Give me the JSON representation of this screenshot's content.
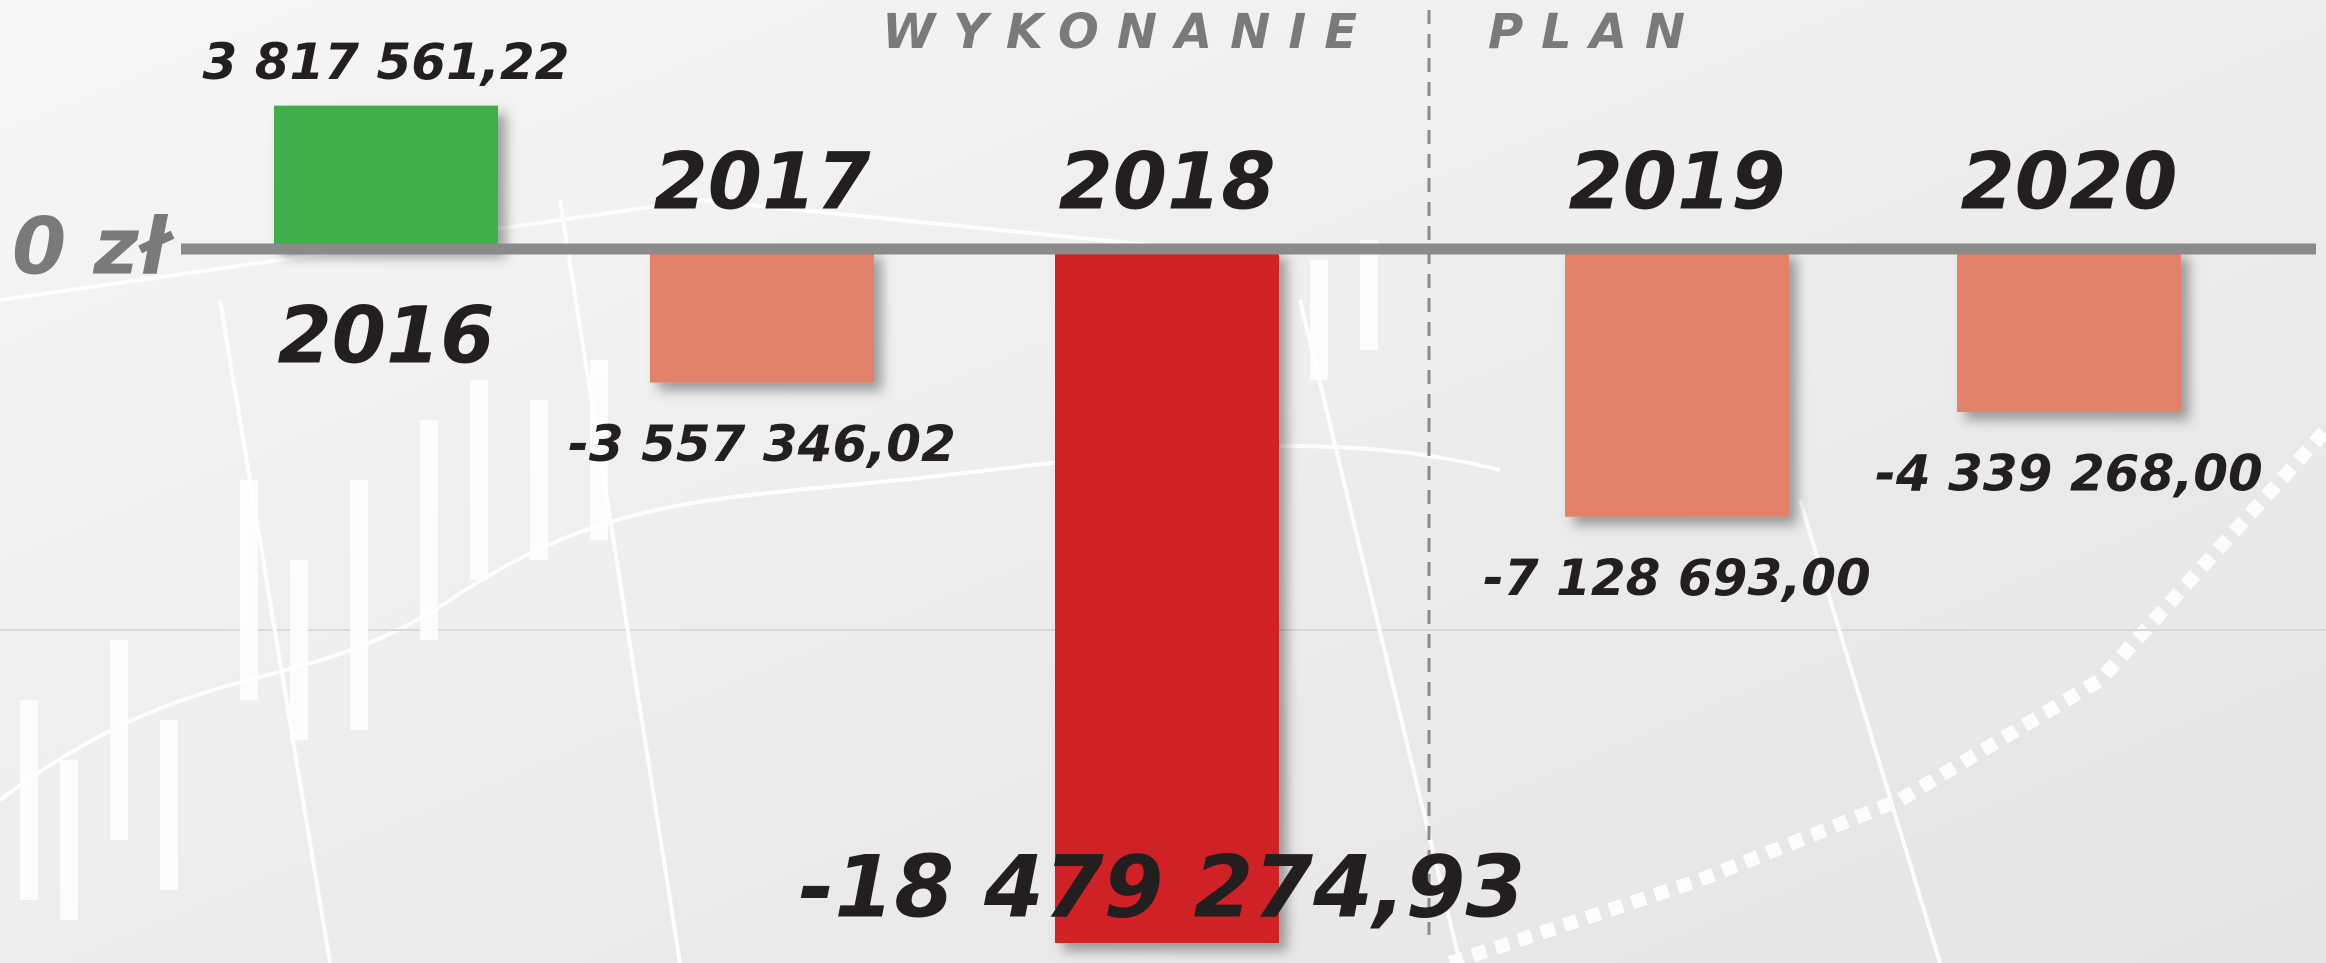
{
  "chart_data": {
    "type": "bar",
    "categories": [
      "2016",
      "2017",
      "2018",
      "2019",
      "2020"
    ],
    "values": [
      3817561.22,
      -3557346.02,
      -18479274.93,
      -7128693.0,
      -4339268.0
    ],
    "value_labels": [
      "3 817 561,22",
      "-3 557 346,02",
      "-18 479 274,93",
      "-7 128 693,00",
      "-4 339 268,00"
    ],
    "colors": [
      "#41ae4a",
      "#e2826b",
      "#d02128",
      "#e2826b",
      "#e2826b"
    ],
    "zero_label": "0 zł",
    "annotations": [
      "WYKONANIE",
      "PLAN"
    ]
  }
}
